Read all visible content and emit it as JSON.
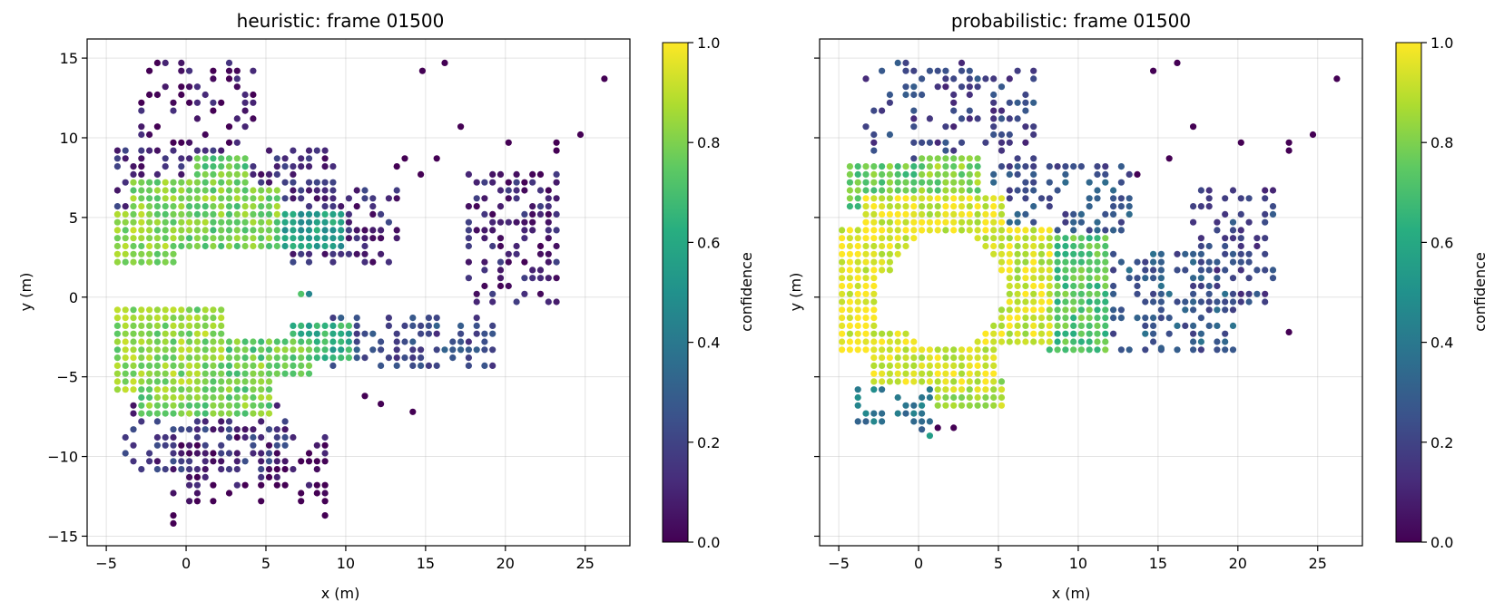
{
  "chart_data": [
    {
      "type": "scatter",
      "title": "heuristic: frame 01500",
      "xlabel": "x (m)",
      "ylabel": "y (m)",
      "xlim": [
        -6.2,
        27.8
      ],
      "ylim": [
        -15.6,
        16.2
      ],
      "xticks": [
        -5,
        0,
        5,
        10,
        15,
        20,
        25
      ],
      "yticks": [
        -15,
        -10,
        -5,
        0,
        5,
        10,
        15
      ],
      "grid": true,
      "colorbar": {
        "label": "confidence",
        "range": [
          0.0,
          1.0
        ],
        "ticks": [
          "0.0",
          "0.2",
          "0.4",
          "0.6",
          "0.8",
          "1.0"
        ],
        "colormap": "viridis"
      },
      "point_spacing_m": 0.5,
      "regions": [
        {
          "shape": "rect",
          "x": [
            -4.8,
            -1.0
          ],
          "y": [
            1.6,
            5.4
          ],
          "value": 0.82,
          "step": 1
        },
        {
          "shape": "rect",
          "x": [
            -3.5,
            1.0
          ],
          "y": [
            4.0,
            7.2
          ],
          "value": 0.8,
          "step": 1
        },
        {
          "shape": "rect",
          "x": [
            -1.0,
            5.8
          ],
          "y": [
            2.6,
            6.8
          ],
          "value": 0.78,
          "step": 1
        },
        {
          "shape": "rect",
          "x": [
            0.5,
            3.5
          ],
          "y": [
            6.5,
            8.6
          ],
          "value": 0.76,
          "step": 1
        },
        {
          "shape": "rect",
          "x": [
            5.5,
            9.5
          ],
          "y": [
            3.0,
            5.2
          ],
          "value": 0.55,
          "step": 1
        },
        {
          "shape": "rect",
          "x": [
            -4.8,
            2.0
          ],
          "y": [
            -6.4,
            -0.8
          ],
          "value": 0.82,
          "step": 1
        },
        {
          "shape": "rect",
          "x": [
            -3.0,
            5.0
          ],
          "y": [
            -7.6,
            -4.4
          ],
          "value": 0.78,
          "step": 1
        },
        {
          "shape": "rect",
          "x": [
            2.0,
            7.5
          ],
          "y": [
            -5.2,
            -2.6
          ],
          "value": 0.76,
          "step": 1
        },
        {
          "shape": "rect",
          "x": [
            6.5,
            10.0
          ],
          "y": [
            -4.4,
            -2.0
          ],
          "value": 0.62,
          "step": 1
        },
        {
          "shape": "rect",
          "x": [
            -4.8,
            9.0
          ],
          "y": [
            5.0,
            9.4
          ],
          "value": 0.12,
          "step": 2
        },
        {
          "shape": "rect",
          "x": [
            -3.0,
            4.0
          ],
          "y": [
            9.0,
            14.8
          ],
          "value": 0.05,
          "step": 3
        },
        {
          "shape": "rect",
          "x": [
            6.0,
            13.0
          ],
          "y": [
            2.0,
            6.5
          ],
          "value": 0.12,
          "step": 2
        },
        {
          "shape": "rect",
          "x": [
            -4.0,
            6.0
          ],
          "y": [
            -11.0,
            -7.0
          ],
          "value": 0.15,
          "step": 2
        },
        {
          "shape": "rect",
          "x": [
            -1.0,
            8.5
          ],
          "y": [
            -13.0,
            -9.0
          ],
          "value": 0.04,
          "step": 3
        },
        {
          "shape": "rect",
          "x": [
            9.0,
            19.0
          ],
          "y": [
            -4.5,
            -1.5
          ],
          "value": 0.22,
          "step": 2
        },
        {
          "shape": "rect",
          "x": [
            17.5,
            23.0
          ],
          "y": [
            -0.5,
            7.5
          ],
          "value": 0.1,
          "step": 2
        }
      ],
      "points": [
        {
          "x": 14.8,
          "y": 14.2,
          "value": 0.0
        },
        {
          "x": 16.2,
          "y": 14.7,
          "value": 0.0
        },
        {
          "x": 26.2,
          "y": 13.7,
          "value": 0.0
        },
        {
          "x": 17.2,
          "y": 10.7,
          "value": 0.0
        },
        {
          "x": 24.7,
          "y": 10.2,
          "value": 0.0
        },
        {
          "x": 20.2,
          "y": 9.7,
          "value": 0.0
        },
        {
          "x": 23.2,
          "y": 9.7,
          "value": 0.0
        },
        {
          "x": 23.2,
          "y": 9.2,
          "value": 0.0
        },
        {
          "x": 15.7,
          "y": 8.7,
          "value": 0.0
        },
        {
          "x": 13.7,
          "y": 8.7,
          "value": 0.0
        },
        {
          "x": 13.2,
          "y": 8.2,
          "value": 0.0
        },
        {
          "x": 14.7,
          "y": 7.7,
          "value": 0.0
        },
        {
          "x": 23.2,
          "y": 6.2,
          "value": 0.0
        },
        {
          "x": 14.2,
          "y": -7.2,
          "value": 0.0
        },
        {
          "x": 8.7,
          "y": -13.7,
          "value": 0.0
        },
        {
          "x": -0.8,
          "y": -13.7,
          "value": 0.0
        },
        {
          "x": -0.8,
          "y": -14.2,
          "value": 0.0
        },
        {
          "x": 7.2,
          "y": 0.2,
          "value": 0.72
        },
        {
          "x": 7.7,
          "y": 0.2,
          "value": 0.45
        },
        {
          "x": -0.3,
          "y": -2.2,
          "value": 0.0
        },
        {
          "x": 11.2,
          "y": -6.2,
          "value": 0.0
        },
        {
          "x": 12.2,
          "y": -6.7,
          "value": 0.0
        }
      ]
    },
    {
      "type": "scatter",
      "title": "probabilistic: frame 01500",
      "xlabel": "x (m)",
      "ylabel": "y (m)",
      "xlim": [
        -6.2,
        27.8
      ],
      "ylim": [
        -15.6,
        16.2
      ],
      "xticks": [
        -5,
        0,
        5,
        10,
        15,
        20,
        25
      ],
      "yticks": [
        -15,
        -10,
        -5,
        0,
        5,
        10,
        15
      ],
      "grid": true,
      "colorbar": {
        "label": "confidence",
        "range": [
          0.0,
          1.0
        ],
        "ticks": [
          "0.0",
          "0.2",
          "0.4",
          "0.6",
          "0.8",
          "1.0"
        ],
        "colormap": "viridis"
      },
      "point_spacing_m": 0.5,
      "regions": [
        {
          "shape": "rect",
          "x": [
            -5.0,
            -3.0
          ],
          "y": [
            -3.5,
            4.0
          ],
          "value": 0.97,
          "step": 1
        },
        {
          "shape": "rect",
          "x": [
            -3.5,
            5.0
          ],
          "y": [
            1.5,
            6.0
          ],
          "value": 0.95,
          "step": 1
        },
        {
          "shape": "rect",
          "x": [
            -3.0,
            4.5
          ],
          "y": [
            -5.5,
            -2.5
          ],
          "value": 0.95,
          "step": 1
        },
        {
          "shape": "rect",
          "x": [
            3.5,
            8.0
          ],
          "y": [
            -3.0,
            4.0
          ],
          "value": 0.93,
          "step": 1
        },
        {
          "shape": "rect",
          "x": [
            0.0,
            3.5
          ],
          "y": [
            6.0,
            8.5
          ],
          "value": 0.8,
          "step": 1
        },
        {
          "shape": "rect",
          "x": [
            -4.5,
            0.0
          ],
          "y": [
            5.5,
            8.0
          ],
          "value": 0.75,
          "step": 1
        },
        {
          "shape": "rect",
          "x": [
            8.0,
            11.5
          ],
          "y": [
            -3.5,
            3.5
          ],
          "value": 0.72,
          "step": 1
        },
        {
          "shape": "rect",
          "x": [
            1.0,
            5.0
          ],
          "y": [
            -7.0,
            -5.5
          ],
          "value": 0.88,
          "step": 1
        },
        {
          "shape": "rect",
          "x": [
            -4.0,
            1.0
          ],
          "y": [
            -8.0,
            -5.5
          ],
          "value": 0.4,
          "step": 2
        },
        {
          "shape": "rect",
          "x": [
            -3.5,
            7.0
          ],
          "y": [
            8.0,
            14.5
          ],
          "value": 0.2,
          "step": 3
        },
        {
          "shape": "rect",
          "x": [
            4.5,
            13.0
          ],
          "y": [
            4.0,
            8.0
          ],
          "value": 0.25,
          "step": 2
        },
        {
          "shape": "rect",
          "x": [
            11.0,
            19.5
          ],
          "y": [
            -3.5,
            2.5
          ],
          "value": 0.28,
          "step": 2
        },
        {
          "shape": "rect",
          "x": [
            17.0,
            22.0
          ],
          "y": [
            -0.5,
            6.5
          ],
          "value": 0.2,
          "step": 2
        },
        {
          "shape": "rect",
          "x": 0,
          "y": [
            -8.5,
            -6.5
          ],
          "value": 0.35,
          "step": 1
        }
      ],
      "holes": [
        {
          "cx": 1.5,
          "cy": 0.2,
          "rx": 3.6,
          "ry": 3.7
        }
      ],
      "points": [
        {
          "x": 14.7,
          "y": 14.2,
          "value": 0.0
        },
        {
          "x": 16.2,
          "y": 14.7,
          "value": 0.0
        },
        {
          "x": 26.2,
          "y": 13.7,
          "value": 0.0
        },
        {
          "x": 17.2,
          "y": 10.7,
          "value": 0.0
        },
        {
          "x": 24.7,
          "y": 10.2,
          "value": 0.0
        },
        {
          "x": 20.2,
          "y": 9.7,
          "value": 0.0
        },
        {
          "x": 23.2,
          "y": 9.7,
          "value": 0.0
        },
        {
          "x": 23.2,
          "y": 9.2,
          "value": 0.0
        },
        {
          "x": 15.7,
          "y": 8.7,
          "value": 0.0
        },
        {
          "x": 13.7,
          "y": 7.7,
          "value": 0.0
        },
        {
          "x": 23.2,
          "y": -2.2,
          "value": 0.0
        },
        {
          "x": 15.2,
          "y": -3.2,
          "value": 0.3
        },
        {
          "x": 0.7,
          "y": -8.7,
          "value": 0.55
        },
        {
          "x": 1.2,
          "y": -8.2,
          "value": 0.0
        },
        {
          "x": 2.2,
          "y": -8.2,
          "value": 0.0
        }
      ]
    }
  ]
}
